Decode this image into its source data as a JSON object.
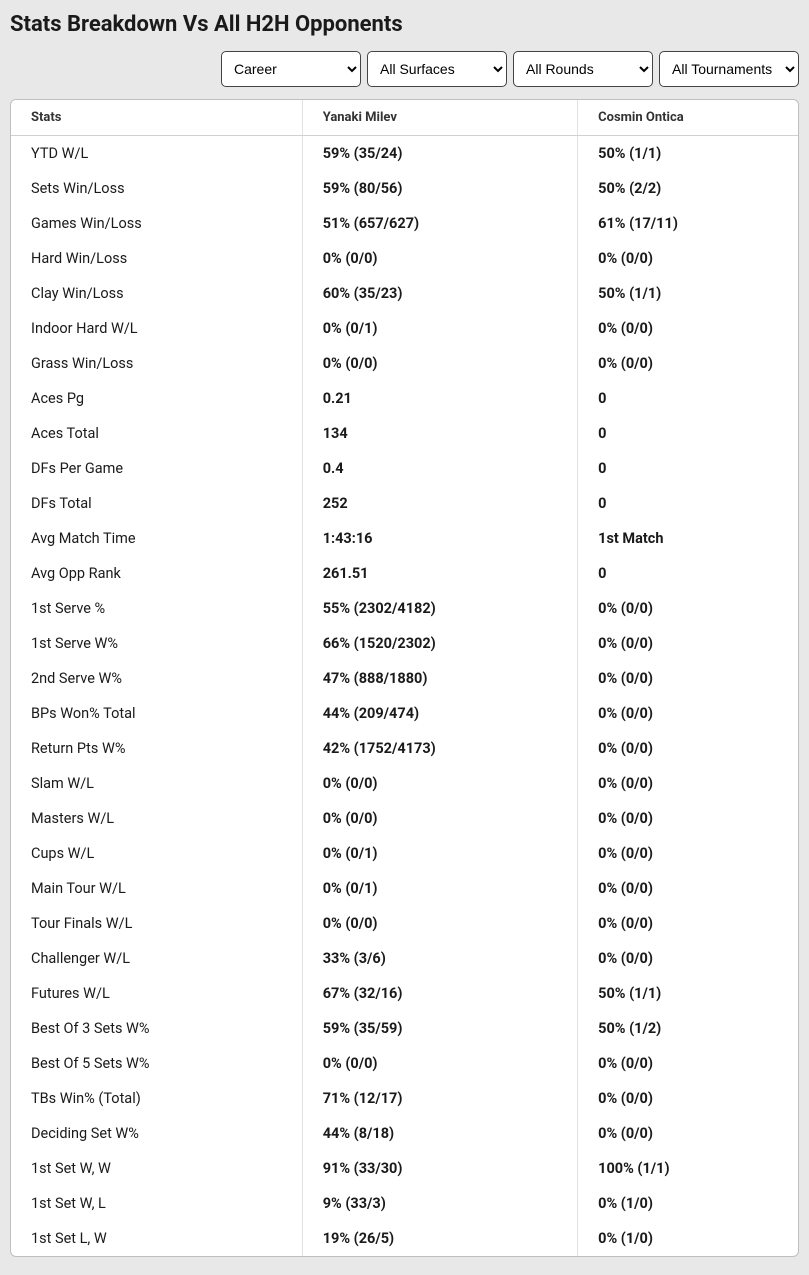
{
  "title": "Stats Breakdown Vs All H2H Opponents",
  "filters": {
    "career": "Career",
    "surfaces": "All Surfaces",
    "rounds": "All Rounds",
    "tournaments": "All Tournaments"
  },
  "table": {
    "columns": [
      "Stats",
      "Yanaki Milev",
      "Cosmin Ontica"
    ],
    "header_bg": "#ffffff",
    "border_color": "#bfbfbf",
    "divider_color": "#e2e2e2",
    "rows": [
      [
        "YTD W/L",
        "59% (35/24)",
        "50% (1/1)"
      ],
      [
        "Sets Win/Loss",
        "59% (80/56)",
        "50% (2/2)"
      ],
      [
        "Games Win/Loss",
        "51% (657/627)",
        "61% (17/11)"
      ],
      [
        "Hard Win/Loss",
        "0% (0/0)",
        "0% (0/0)"
      ],
      [
        "Clay Win/Loss",
        "60% (35/23)",
        "50% (1/1)"
      ],
      [
        "Indoor Hard W/L",
        "0% (0/1)",
        "0% (0/0)"
      ],
      [
        "Grass Win/Loss",
        "0% (0/0)",
        "0% (0/0)"
      ],
      [
        "Aces Pg",
        "0.21",
        "0"
      ],
      [
        "Aces Total",
        "134",
        "0"
      ],
      [
        "DFs Per Game",
        "0.4",
        "0"
      ],
      [
        "DFs Total",
        "252",
        "0"
      ],
      [
        "Avg Match Time",
        "1:43:16",
        "1st Match"
      ],
      [
        "Avg Opp Rank",
        "261.51",
        "0"
      ],
      [
        "1st Serve %",
        "55% (2302/4182)",
        "0% (0/0)"
      ],
      [
        "1st Serve W%",
        "66% (1520/2302)",
        "0% (0/0)"
      ],
      [
        "2nd Serve W%",
        "47% (888/1880)",
        "0% (0/0)"
      ],
      [
        "BPs Won% Total",
        "44% (209/474)",
        "0% (0/0)"
      ],
      [
        "Return Pts W%",
        "42% (1752/4173)",
        "0% (0/0)"
      ],
      [
        "Slam W/L",
        "0% (0/0)",
        "0% (0/0)"
      ],
      [
        "Masters W/L",
        "0% (0/0)",
        "0% (0/0)"
      ],
      [
        "Cups W/L",
        "0% (0/1)",
        "0% (0/0)"
      ],
      [
        "Main Tour W/L",
        "0% (0/1)",
        "0% (0/0)"
      ],
      [
        "Tour Finals W/L",
        "0% (0/0)",
        "0% (0/0)"
      ],
      [
        "Challenger W/L",
        "33% (3/6)",
        "0% (0/0)"
      ],
      [
        "Futures W/L",
        "67% (32/16)",
        "50% (1/1)"
      ],
      [
        "Best Of 3 Sets W%",
        "59% (35/59)",
        "50% (1/2)"
      ],
      [
        "Best Of 5 Sets W%",
        "0% (0/0)",
        "0% (0/0)"
      ],
      [
        "TBs Win% (Total)",
        "71% (12/17)",
        "0% (0/0)"
      ],
      [
        "Deciding Set W%",
        "44% (8/18)",
        "0% (0/0)"
      ],
      [
        "1st Set W, W",
        "91% (33/30)",
        "100% (1/1)"
      ],
      [
        "1st Set W, L",
        "9% (33/3)",
        "0% (1/0)"
      ],
      [
        "1st Set L, W",
        "19% (26/5)",
        "0% (1/0)"
      ]
    ]
  },
  "colors": {
    "page_bg": "#e8e8e8",
    "text": "#1a1a1a"
  }
}
